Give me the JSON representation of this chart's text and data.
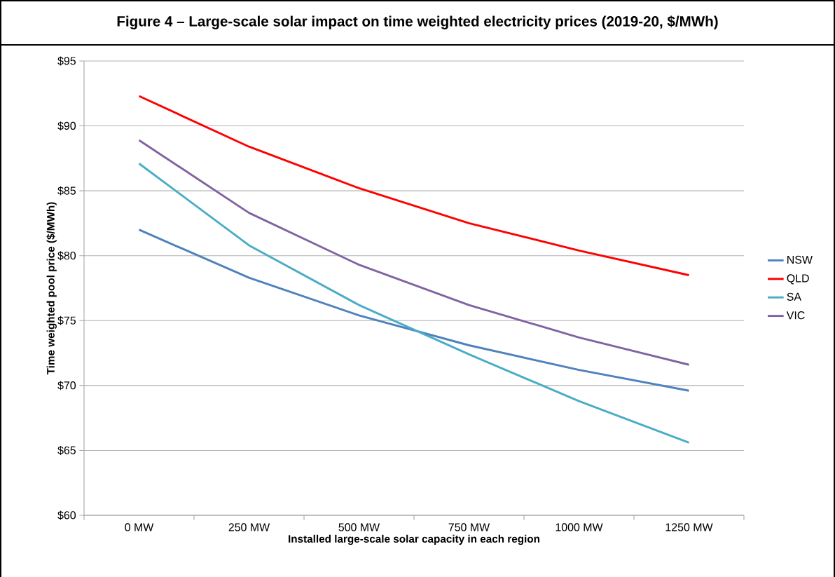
{
  "chart_data": {
    "type": "line",
    "title": "Figure 4 – Large-scale solar impact on time weighted electricity prices (2019-20, $/MWh)",
    "xlabel": "Installed large-scale solar capacity in each region",
    "ylabel": "Time weighted pool price ($/MWh)",
    "categories": [
      "0 MW",
      "250 MW",
      "500 MW",
      "750 MW",
      "1000 MW",
      "1250 MW"
    ],
    "series": [
      {
        "name": "NSW",
        "color": "#4f81bd",
        "values": [
          82.0,
          78.3,
          75.4,
          73.1,
          71.2,
          69.6
        ]
      },
      {
        "name": "QLD",
        "color": "#ff0000",
        "values": [
          92.3,
          88.4,
          85.2,
          82.5,
          80.4,
          78.5
        ]
      },
      {
        "name": "SA",
        "color": "#4bacc6",
        "values": [
          87.1,
          80.8,
          76.2,
          72.4,
          68.8,
          65.6
        ]
      },
      {
        "name": "VIC",
        "color": "#8064a2",
        "values": [
          88.9,
          83.3,
          79.3,
          76.2,
          73.7,
          71.6
        ]
      }
    ],
    "ylim": [
      60,
      95
    ],
    "yticks": [
      {
        "value": 60,
        "label": "$60"
      },
      {
        "value": 65,
        "label": "$65"
      },
      {
        "value": 70,
        "label": "$70"
      },
      {
        "value": 75,
        "label": "$75"
      },
      {
        "value": 80,
        "label": "$80"
      },
      {
        "value": 85,
        "label": "$85"
      },
      {
        "value": 90,
        "label": "$90"
      },
      {
        "value": 95,
        "label": "$95"
      }
    ],
    "grid": "y",
    "legend": "right",
    "marker": "none",
    "line_style": "solid"
  }
}
